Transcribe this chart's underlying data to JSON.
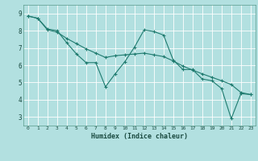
{
  "xlabel": "Humidex (Indice chaleur)",
  "bg_color": "#b2e0e0",
  "grid_color": "#ffffff",
  "line_color": "#1e7a6e",
  "xlim": [
    -0.5,
    23.5
  ],
  "ylim": [
    2.5,
    9.5
  ],
  "yticks": [
    3,
    4,
    5,
    6,
    7,
    8,
    9
  ],
  "xticks": [
    0,
    1,
    2,
    3,
    4,
    5,
    6,
    7,
    8,
    9,
    10,
    11,
    12,
    13,
    14,
    15,
    16,
    17,
    18,
    19,
    20,
    21,
    22,
    23
  ],
  "series1_x": [
    0,
    1,
    2,
    3,
    4,
    5,
    6,
    7,
    8,
    9,
    10,
    11,
    12,
    13,
    14,
    15,
    16,
    17,
    18,
    19,
    20,
    21,
    22,
    23
  ],
  "series1_y": [
    8.85,
    8.72,
    8.1,
    8.0,
    7.3,
    6.65,
    6.15,
    6.15,
    4.75,
    5.5,
    6.2,
    7.05,
    8.05,
    7.95,
    7.75,
    6.3,
    5.75,
    5.75,
    5.2,
    5.1,
    4.65,
    2.9,
    4.35,
    4.3
  ],
  "series2_x": [
    0,
    1,
    2,
    3,
    4,
    5,
    6,
    7,
    8,
    9,
    10,
    11,
    12,
    13,
    14,
    15,
    16,
    17,
    18,
    19,
    20,
    21,
    22,
    23
  ],
  "series2_y": [
    8.85,
    8.72,
    8.05,
    7.92,
    7.55,
    7.25,
    6.95,
    6.7,
    6.45,
    6.55,
    6.6,
    6.65,
    6.7,
    6.6,
    6.5,
    6.25,
    5.95,
    5.72,
    5.5,
    5.3,
    5.1,
    4.88,
    4.42,
    4.3
  ]
}
